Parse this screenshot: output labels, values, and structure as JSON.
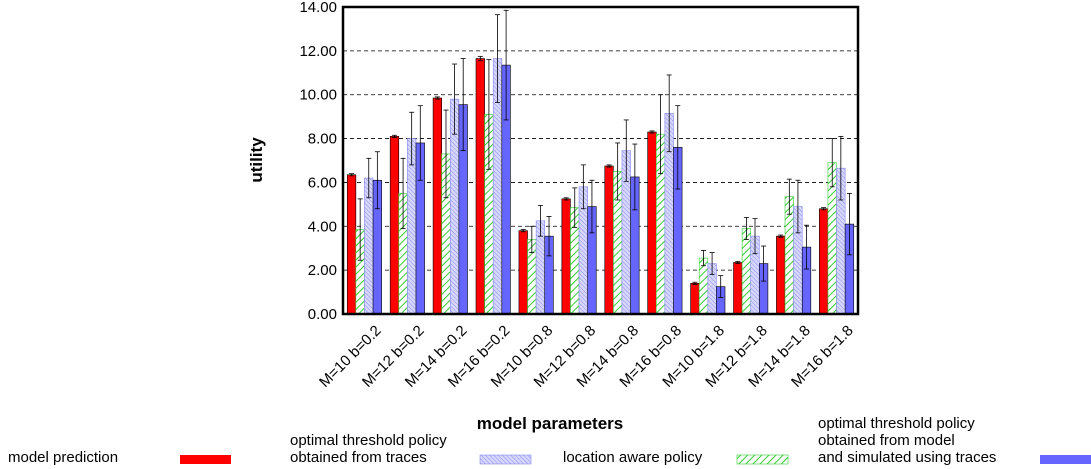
{
  "chart_data": {
    "type": "bar",
    "x_label": "model parameters",
    "y_label": "utility",
    "categories": [
      "M=10 b=0.2",
      "M=12 b=0.2",
      "M=14 b=0.2",
      "M=16 b=0.2",
      "M=10 b=0.8",
      "M=12 b=0.8",
      "M=14 b=0.8",
      "M=16 b=0.8",
      "M=10 b=1.8",
      "M=12 b=1.8",
      "M=14 b=1.8",
      "M=16 b=1.8"
    ],
    "series": [
      {
        "name": "model prediction",
        "color": "#ff0000",
        "hatch": false,
        "values": [
          6.35,
          8.1,
          9.85,
          11.65,
          3.8,
          5.25,
          6.75,
          8.3,
          1.4,
          2.35,
          3.55,
          4.8
        ],
        "errors": [
          0.05,
          0.05,
          0.05,
          0.1,
          0.05,
          0.05,
          0.05,
          0.05,
          0.05,
          0.05,
          0.05,
          0.05
        ]
      },
      {
        "name": "location aware policy",
        "color": "#33cc33",
        "hatch": true,
        "values": [
          3.85,
          5.5,
          7.3,
          9.1,
          3.4,
          4.85,
          6.5,
          8.2,
          2.55,
          3.9,
          5.35,
          6.9
        ],
        "errors": [
          1.4,
          1.6,
          2.0,
          2.5,
          0.6,
          0.9,
          1.3,
          1.8,
          0.35,
          0.5,
          0.8,
          1.1
        ]
      },
      {
        "name": "optimal threshold policy\nobtained from traces",
        "color": "#8888ee",
        "hatch": true,
        "values": [
          6.2,
          8.0,
          9.8,
          11.65,
          4.25,
          5.8,
          7.45,
          9.15,
          2.3,
          3.55,
          4.9,
          6.65
        ],
        "errors": [
          0.9,
          1.2,
          1.6,
          2.0,
          0.7,
          1.0,
          1.4,
          1.75,
          0.5,
          0.8,
          1.2,
          1.45
        ]
      },
      {
        "name": "optimal threshold policy\nobtained from model\nand simulated using traces",
        "color": "#6666ff",
        "hatch": false,
        "values": [
          6.1,
          7.8,
          9.55,
          11.35,
          3.55,
          4.9,
          6.25,
          7.6,
          1.25,
          2.3,
          3.05,
          4.1
        ],
        "errors": [
          1.3,
          1.7,
          2.1,
          2.5,
          0.9,
          1.2,
          1.5,
          1.9,
          0.5,
          0.8,
          1.0,
          1.4
        ]
      }
    ],
    "legend_order": [
      0,
      2,
      1,
      3
    ],
    "ylim": [
      0,
      14
    ],
    "yticks": [
      {
        "value": 0,
        "label": "0.00"
      },
      {
        "value": 2,
        "label": "2.00"
      },
      {
        "value": 4,
        "label": "4.00"
      },
      {
        "value": 6,
        "label": "6.00"
      },
      {
        "value": 8,
        "label": "8.00"
      },
      {
        "value": 10,
        "label": "10.00"
      },
      {
        "value": 12,
        "label": "12.00"
      },
      {
        "value": 14,
        "label": "14.00"
      }
    ],
    "grid": true
  }
}
